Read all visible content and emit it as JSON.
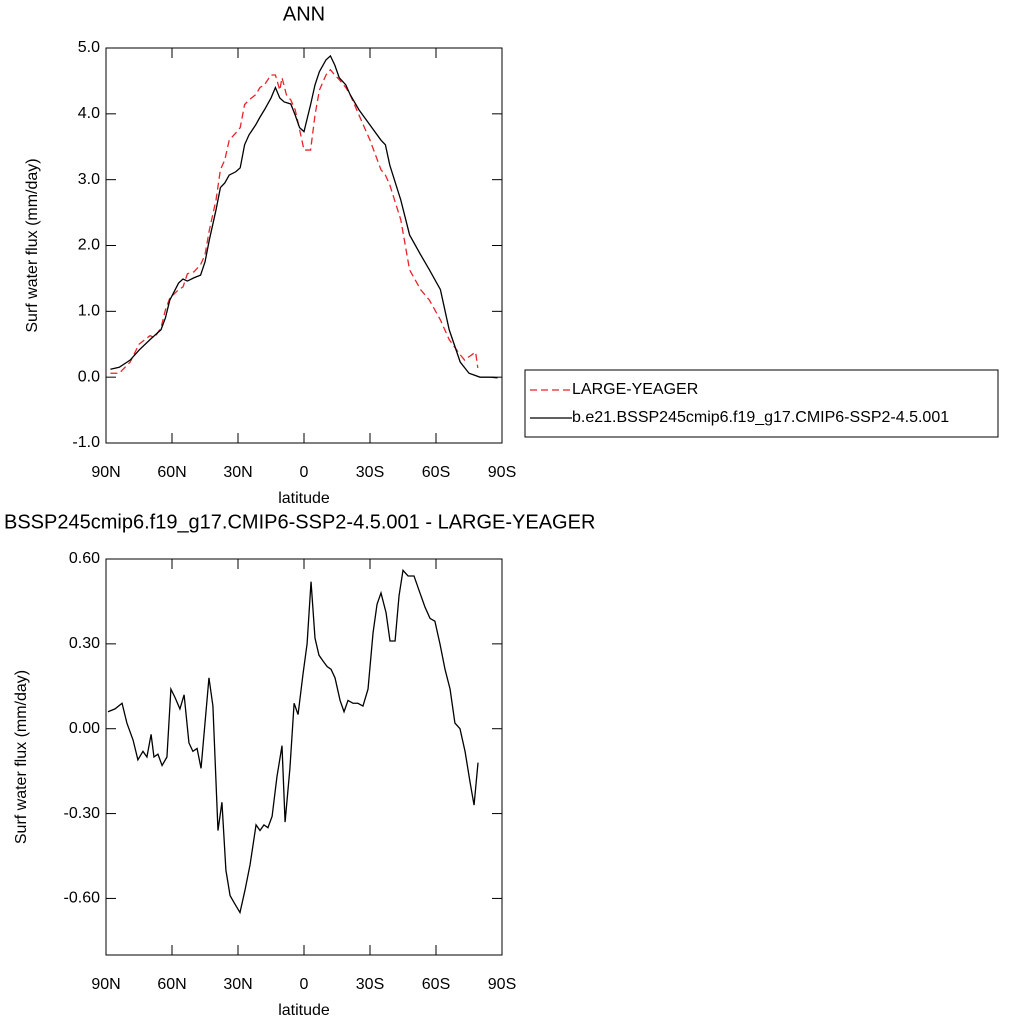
{
  "chart_data": [
    {
      "type": "line",
      "title": "ANN",
      "xlabel": "latitude",
      "ylabel": "Surf water flux (mm/day)",
      "xlim": [
        90,
        -90
      ],
      "xticks": [
        {
          "value": 90,
          "label": "90N"
        },
        {
          "value": 60,
          "label": "60N"
        },
        {
          "value": 30,
          "label": "30N"
        },
        0,
        {
          "value": -30,
          "label": "30S"
        },
        {
          "value": -60,
          "label": "60S"
        },
        {
          "value": -90,
          "label": "90S"
        }
      ],
      "ylim": [
        -1,
        5
      ],
      "yticks": [
        {
          "value": -1,
          "label": "-1.0"
        },
        {
          "value": 0,
          "label": "0.0"
        },
        {
          "value": 1,
          "label": "1.0"
        },
        {
          "value": 2,
          "label": "2.0"
        },
        {
          "value": 3,
          "label": "3.0"
        },
        {
          "value": 4,
          "label": "4.0"
        },
        {
          "value": 5,
          "label": "5.0"
        }
      ],
      "legend": "right",
      "series": [
        {
          "name": "LARGE-YEAGER",
          "color": "#e8232a",
          "line_style": "dashed",
          "x": [
            88,
            84,
            79,
            75,
            70,
            68,
            65,
            63,
            61,
            57,
            55,
            53,
            50,
            47,
            45,
            43,
            40,
            38,
            36,
            34,
            31,
            29,
            27,
            25,
            22,
            20,
            18,
            15,
            13,
            11,
            10,
            8,
            6,
            4,
            2,
            0,
            -3,
            -5,
            -7,
            -10,
            -12,
            -14,
            -16,
            -19,
            -21,
            -25,
            -30,
            -35,
            -37,
            -39,
            -44,
            -48,
            -53,
            -57,
            -62,
            -66,
            -71,
            -73,
            -75,
            -78,
            -79
          ],
          "values": [
            0.06,
            0.06,
            0.23,
            0.5,
            0.63,
            0.6,
            0.75,
            1.02,
            1.2,
            1.33,
            1.37,
            1.57,
            1.6,
            1.71,
            1.86,
            2.24,
            2.69,
            3.15,
            3.3,
            3.6,
            3.71,
            3.79,
            4.14,
            4.21,
            4.29,
            4.4,
            4.44,
            4.59,
            4.59,
            4.36,
            4.55,
            4.29,
            4.21,
            4.06,
            3.76,
            3.45,
            3.45,
            3.98,
            4.36,
            4.59,
            4.67,
            4.59,
            4.52,
            4.4,
            4.29,
            3.98,
            3.6,
            3.15,
            3.07,
            2.92,
            2.39,
            1.63,
            1.33,
            1.17,
            0.87,
            0.57,
            0.34,
            0.26,
            0.31,
            0.38,
            0.14
          ]
        },
        {
          "name": "b.e21.BSSP245cmip6.f19_g17.CMIP6-SSP2-4.5.001",
          "color": "#000000",
          "line_style": "solid",
          "x": [
            88,
            84,
            79,
            75,
            70,
            65,
            63,
            61,
            57,
            55,
            53,
            50,
            47,
            45,
            43,
            40,
            38,
            36,
            34,
            31,
            29,
            27,
            25,
            22,
            20,
            18,
            15,
            13,
            11,
            9,
            6,
            4,
            2,
            0,
            -3,
            -5,
            -7,
            -10,
            -12,
            -14,
            -16,
            -19,
            -21,
            -25,
            -30,
            -35,
            -37,
            -39,
            -44,
            -48,
            -53,
            -57,
            -62,
            -66,
            -71,
            -75,
            -80,
            -85,
            -88
          ],
          "values": [
            0.12,
            0.15,
            0.26,
            0.41,
            0.57,
            0.72,
            0.9,
            1.17,
            1.43,
            1.49,
            1.46,
            1.51,
            1.55,
            1.75,
            2.09,
            2.54,
            2.88,
            2.95,
            3.07,
            3.12,
            3.18,
            3.53,
            3.68,
            3.83,
            3.95,
            4.06,
            4.24,
            4.4,
            4.24,
            4.18,
            4.15,
            3.98,
            3.79,
            3.73,
            4.14,
            4.44,
            4.64,
            4.82,
            4.88,
            4.74,
            4.55,
            4.44,
            4.29,
            4.06,
            3.83,
            3.6,
            3.53,
            3.22,
            2.69,
            2.16,
            1.86,
            1.63,
            1.33,
            0.72,
            0.23,
            0.06,
            0.0,
            0.0,
            -0.01
          ]
        }
      ]
    },
    {
      "type": "line",
      "title": "BSSP245cmip6.f19_g17.CMIP6-SSP2-4.5.001 - LARGE-YEAGER",
      "xlabel": "latitude",
      "ylabel": "Surf water flux (mm/day)",
      "xlim": [
        90,
        -90
      ],
      "xticks": [
        {
          "value": 90,
          "label": "90N"
        },
        {
          "value": 60,
          "label": "60N"
        },
        {
          "value": 30,
          "label": "30N"
        },
        0,
        {
          "value": -30,
          "label": "30S"
        },
        {
          "value": -60,
          "label": "60S"
        },
        {
          "value": -90,
          "label": "90S"
        }
      ],
      "ylim": [
        -0.8,
        0.6
      ],
      "yticks": [
        {
          "value": -0.6,
          "label": "-0.60"
        },
        {
          "value": -0.3,
          "label": "-0.30"
        },
        {
          "value": 0,
          "label": "0.00"
        },
        {
          "value": 0.3,
          "label": "0.30"
        },
        {
          "value": 0.6,
          "label": "0.60"
        }
      ],
      "series": [
        {
          "color": "#000000",
          "line_style": "solid",
          "x": [
            89.1,
            85.9,
            82.7,
            80.5,
            77.7,
            75.5,
            73.2,
            71.4,
            69.5,
            68.2,
            66.4,
            64.5,
            62.3,
            60.5,
            58.6,
            56.4,
            54.5,
            52.3,
            50.5,
            48.6,
            46.8,
            45.0,
            43.2,
            41.4,
            39.1,
            37.3,
            35.5,
            33.6,
            31.4,
            29.1,
            26.8,
            24.5,
            21.8,
            20.0,
            18.2,
            16.4,
            14.5,
            12.3,
            10.0,
            8.6,
            6.4,
            4.5,
            2.7,
            0.5,
            -1.4,
            -3.2,
            -5.0,
            -6.8,
            -8.6,
            -10.5,
            -12.3,
            -14.1,
            -16.4,
            -18.2,
            -20.0,
            -22.3,
            -24.5,
            -26.8,
            -29.1,
            -31.4,
            -33.2,
            -35.0,
            -37.3,
            -39.1,
            -41.4,
            -43.2,
            -45.0,
            -47.3,
            -50.0,
            -52.7,
            -55.0,
            -57.3,
            -59.5,
            -61.8,
            -64.1,
            -66.4,
            -68.6,
            -70.9,
            -73.2,
            -75.5,
            -77.3,
            -79.1
          ],
          "values": [
            0.06,
            0.07,
            0.09,
            0.02,
            -0.04,
            -0.11,
            -0.08,
            -0.1,
            -0.02,
            -0.1,
            -0.09,
            -0.13,
            -0.1,
            0.14,
            0.11,
            0.07,
            0.12,
            -0.05,
            -0.08,
            -0.07,
            -0.14,
            0.02,
            0.18,
            0.08,
            -0.36,
            -0.26,
            -0.5,
            -0.59,
            -0.62,
            -0.65,
            -0.57,
            -0.48,
            -0.34,
            -0.36,
            -0.34,
            -0.35,
            -0.31,
            -0.17,
            -0.06,
            -0.33,
            -0.14,
            0.09,
            0.05,
            0.19,
            0.3,
            0.52,
            0.32,
            0.26,
            0.24,
            0.22,
            0.21,
            0.18,
            0.1,
            0.06,
            0.1,
            0.09,
            0.09,
            0.08,
            0.14,
            0.34,
            0.44,
            0.48,
            0.41,
            0.31,
            0.31,
            0.47,
            0.56,
            0.54,
            0.54,
            0.48,
            0.43,
            0.39,
            0.38,
            0.3,
            0.21,
            0.14,
            0.02,
            0.0,
            -0.08,
            -0.19,
            -0.27,
            -0.12
          ]
        }
      ]
    }
  ]
}
